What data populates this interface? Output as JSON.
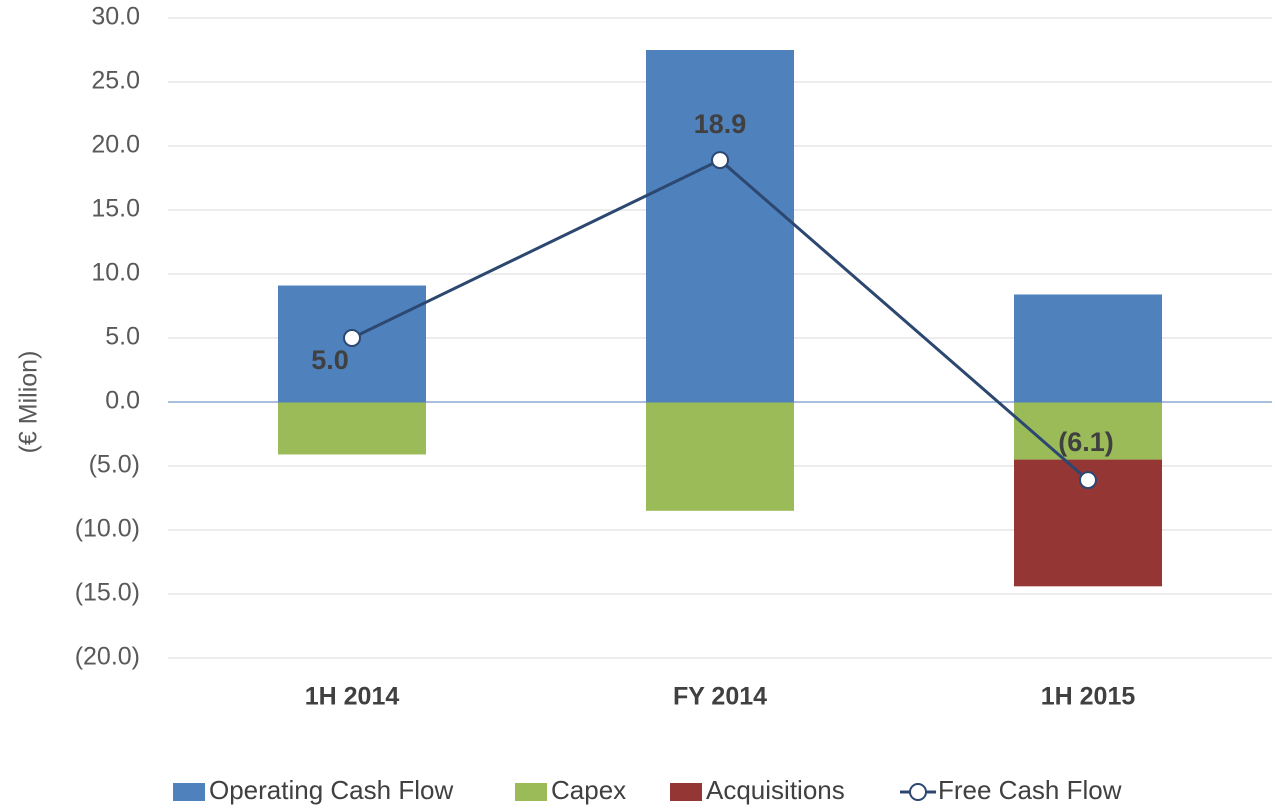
{
  "chart_data": {
    "type": "bar",
    "y_label": "(€ Milion)",
    "categories": [
      "1H 2014",
      "FY 2014",
      "1H 2015"
    ],
    "series": [
      {
        "name": "Operating Cash Flow",
        "color": "#4f81bd",
        "values": [
          9.1,
          27.5,
          8.4
        ]
      },
      {
        "name": "Capex",
        "color": "#9bbb59",
        "values": [
          -4.1,
          -8.5,
          -4.5
        ]
      },
      {
        "name": "Acquisitions",
        "color": "#943634",
        "values": [
          null,
          null,
          -9.9
        ]
      },
      {
        "name": "Free Cash Flow",
        "color": "#2c4770",
        "type": "line",
        "values": [
          5.0,
          18.9,
          -6.1
        ],
        "value_labels": [
          "5.0",
          "18.9",
          "(6.1)"
        ]
      }
    ],
    "ylim": [
      -20,
      30
    ],
    "yticks": [
      {
        "value": -20,
        "label": "(20.0)"
      },
      {
        "value": -15,
        "label": "(15.0)"
      },
      {
        "value": -10,
        "label": "(10.0)"
      },
      {
        "value": -5,
        "label": "(5.0)"
      },
      {
        "value": 0,
        "label": "0.0"
      },
      {
        "value": 5,
        "label": "5.0"
      },
      {
        "value": 10,
        "label": "10.0"
      },
      {
        "value": 15,
        "label": "15.0"
      },
      {
        "value": 20,
        "label": "20.0"
      },
      {
        "value": 25,
        "label": "25.0"
      },
      {
        "value": 30,
        "label": "30.0"
      }
    ],
    "grid": true,
    "legend": "bottom"
  }
}
